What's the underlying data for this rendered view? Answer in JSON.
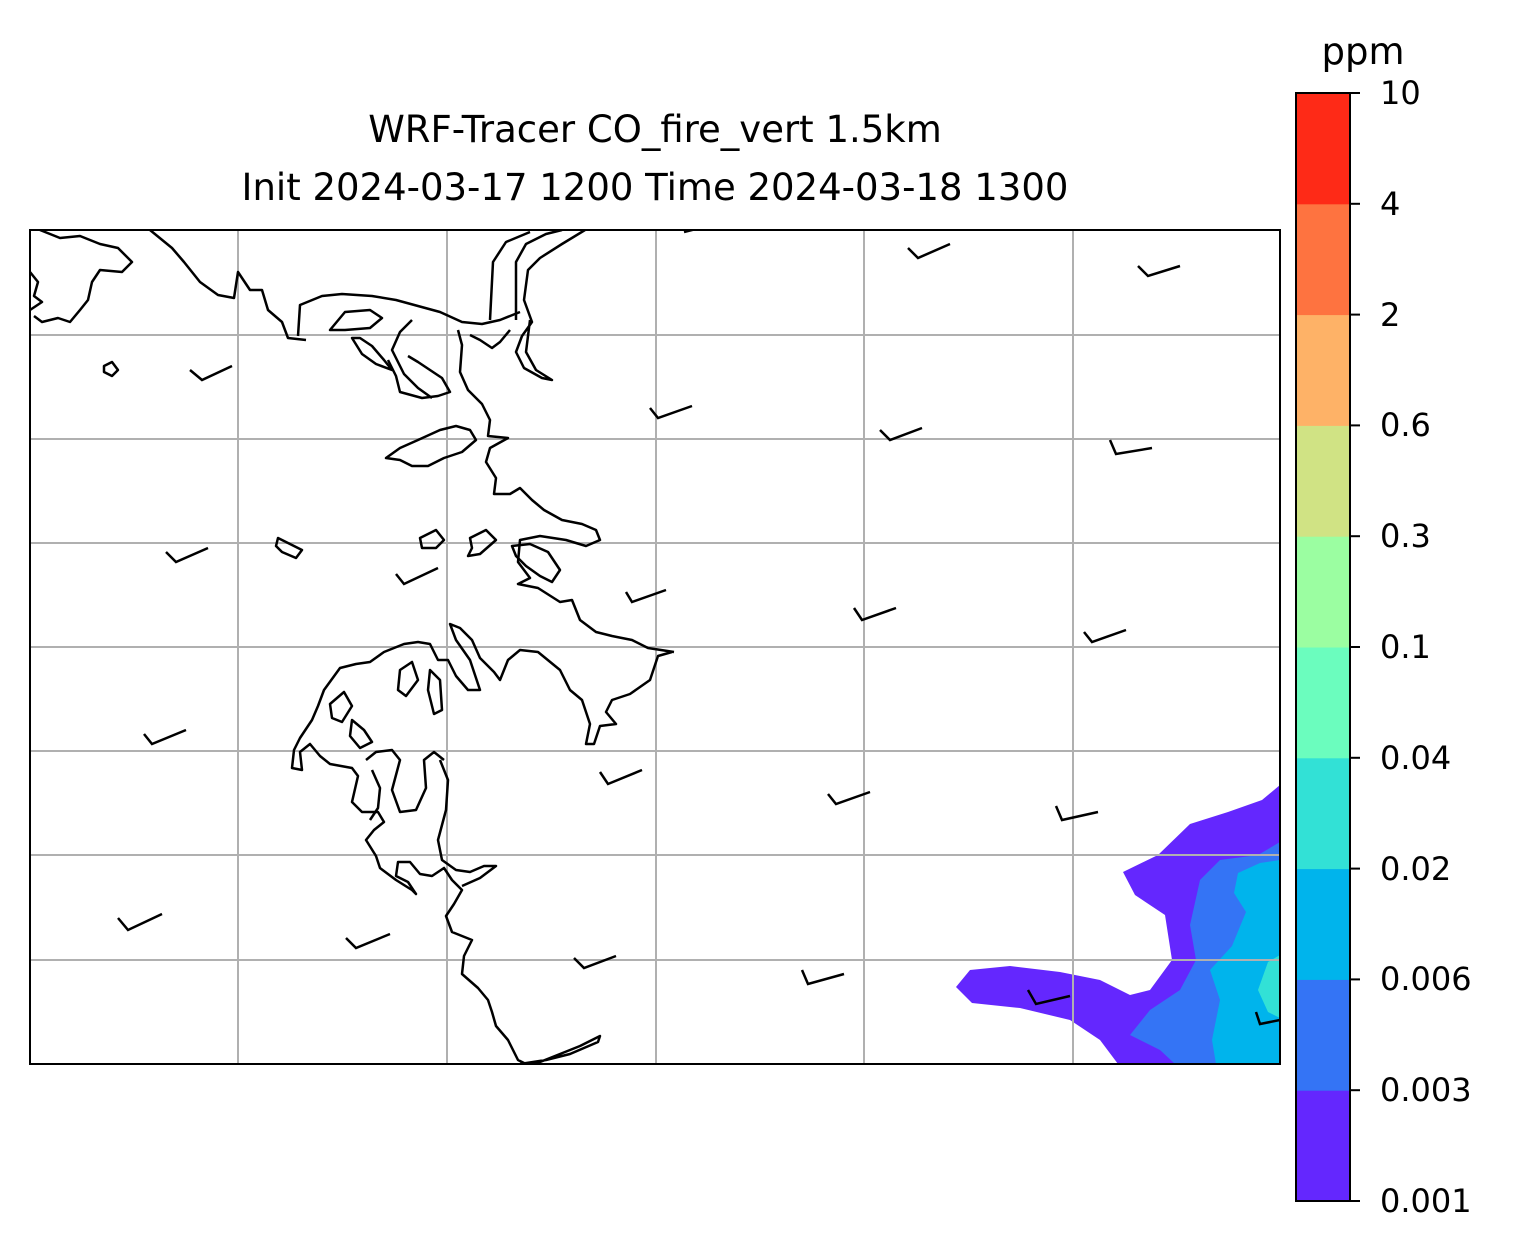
{
  "title": {
    "line1": "WRF-Tracer CO_fire_vert 1.5km",
    "line2": "Init 2024-03-17 1200 Time 2024-03-18 1300"
  },
  "colorbar": {
    "unit": "ppm",
    "levels": [
      "0.001",
      "0.003",
      "0.006",
      "0.02",
      "0.04",
      "0.1",
      "0.3",
      "0.6",
      "2",
      "4",
      "10"
    ],
    "colors": [
      "#6427fe",
      "#3474f5",
      "#00b4ec",
      "#32e1d6",
      "#6bfdbe",
      "#9bfea1",
      "#d0e384",
      "#feb267",
      "#fe7340",
      "#fe2a17"
    ]
  },
  "map": {
    "gridlines": true,
    "coastline_color": "#000000",
    "gridline_color": "#b0b0b0",
    "wind_barbs": true
  }
}
